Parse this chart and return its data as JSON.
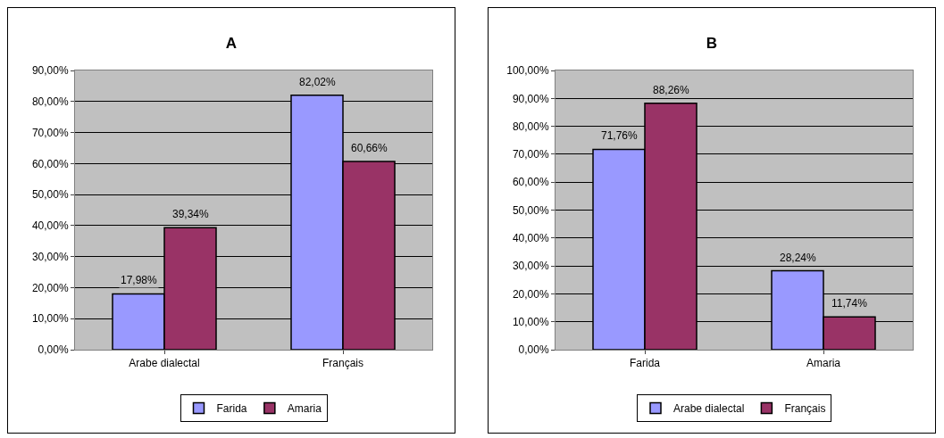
{
  "chart_data": [
    {
      "type": "bar",
      "title": "A",
      "categories": [
        "Arabe dialectal",
        "Français"
      ],
      "ylim": [
        0,
        90
      ],
      "yticks": [
        {
          "value": 0,
          "label": "0,00%"
        },
        {
          "value": 10,
          "label": "10,00%"
        },
        {
          "value": 20,
          "label": "20,00%"
        },
        {
          "value": 30,
          "label": "30,00%"
        },
        {
          "value": 40,
          "label": "40,00%"
        },
        {
          "value": 50,
          "label": "50,00%"
        },
        {
          "value": 60,
          "label": "60,00%"
        },
        {
          "value": 70,
          "label": "70,00%"
        },
        {
          "value": 80,
          "label": "80,00%"
        },
        {
          "value": 90,
          "label": "90,00%"
        }
      ],
      "grid": "y",
      "legend": "bottom",
      "series": [
        {
          "name": "Farida",
          "color": "#9999ff",
          "values": [
            17.98,
            82.02
          ],
          "value_labels": [
            "17,98%",
            "82,02%"
          ]
        },
        {
          "name": "Amaria",
          "color": "#993366",
          "values": [
            39.34,
            60.66
          ],
          "value_labels": [
            "39,34%",
            "60,66%"
          ]
        }
      ]
    },
    {
      "type": "bar",
      "title": "B",
      "categories": [
        "Farida",
        "Amaria"
      ],
      "ylim": [
        0,
        100
      ],
      "yticks": [
        {
          "value": 0,
          "label": "0,00%"
        },
        {
          "value": 10,
          "label": "10,00%"
        },
        {
          "value": 20,
          "label": "20,00%"
        },
        {
          "value": 30,
          "label": "30,00%"
        },
        {
          "value": 40,
          "label": "40,00%"
        },
        {
          "value": 50,
          "label": "50,00%"
        },
        {
          "value": 60,
          "label": "60,00%"
        },
        {
          "value": 70,
          "label": "70,00%"
        },
        {
          "value": 80,
          "label": "80,00%"
        },
        {
          "value": 90,
          "label": "90,00%"
        },
        {
          "value": 100,
          "label": "100,00%"
        }
      ],
      "grid": "y",
      "legend": "bottom",
      "series": [
        {
          "name": "Arabe dialectal",
          "color": "#9999ff",
          "values": [
            71.76,
            28.24
          ],
          "value_labels": [
            "71,76%",
            "28,24%"
          ]
        },
        {
          "name": "Français",
          "color": "#993366",
          "values": [
            88.26,
            11.74
          ],
          "value_labels": [
            "88,26%",
            "11,74%"
          ]
        }
      ]
    }
  ]
}
